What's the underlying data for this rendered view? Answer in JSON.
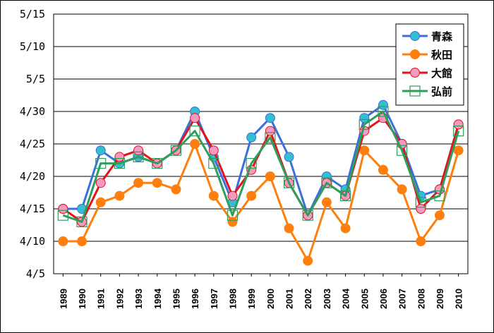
{
  "chart_data": {
    "type": "line",
    "title": "",
    "xlabel": "",
    "ylabel": "",
    "x": [
      "1989",
      "1990",
      "1991",
      "1992",
      "1993",
      "1994",
      "1995",
      "1996",
      "1997",
      "1998",
      "1999",
      "2000",
      "2001",
      "2002",
      "2003",
      "2004",
      "2005",
      "2006",
      "2007",
      "2008",
      "2009",
      "2010"
    ],
    "y_axis": {
      "min": "4/5",
      "max": "5/15",
      "ticks": [
        "4/5",
        "4/10",
        "4/15",
        "4/20",
        "4/25",
        "4/30",
        "5/5",
        "5/10",
        "5/15"
      ],
      "grid": true
    },
    "legend_position": "top-right",
    "series": [
      {
        "name": "青森",
        "color": "#3b6fe0",
        "marker": "circle",
        "marker_fill": "#33bfcf",
        "values": [
          "4/15",
          "4/15",
          "4/24",
          "4/22",
          "4/23",
          "4/22",
          "4/24",
          "4/30",
          "4/23",
          "4/16",
          "4/26",
          "4/29",
          "4/23",
          "4/14",
          "4/20",
          "4/18",
          "4/29",
          "5/1",
          "4/25",
          "4/17",
          "4/18",
          "4/28"
        ]
      },
      {
        "name": "秋田",
        "color": "#ff7f0e",
        "marker": "circle",
        "marker_fill": "#ff7f0e",
        "values": [
          "4/10",
          "4/10",
          "4/16",
          "4/17",
          "4/19",
          "4/19",
          "4/18",
          "4/25",
          "4/17",
          "4/13",
          "4/17",
          "4/20",
          "4/12",
          "4/7",
          "4/16",
          "4/12",
          "4/24",
          "4/21",
          "4/18",
          "4/10",
          "4/14",
          "4/24"
        ]
      },
      {
        "name": "大館",
        "color": "#e3121b",
        "marker": "circle",
        "marker_fill": "#f59ac0",
        "values": [
          "4/15",
          "4/13",
          "4/19",
          "4/23",
          "4/24",
          "4/22",
          "4/24",
          "4/29",
          "4/24",
          "4/17",
          "4/21",
          "4/27",
          "4/19",
          "4/14",
          "4/19",
          "4/17",
          "4/27",
          "4/29",
          "4/25",
          "4/15",
          "4/18",
          "4/28"
        ]
      },
      {
        "name": "弘前",
        "color": "#2e9e5b",
        "marker": "square",
        "marker_fill": "#ffffff",
        "values": [
          "4/14",
          "4/13",
          "4/22",
          "4/22",
          "4/23",
          "4/22",
          "4/24",
          "4/27",
          "4/22",
          "4/14",
          "4/22",
          "4/26",
          "4/19",
          "4/14",
          "4/19",
          "4/17",
          "4/28",
          "4/30",
          "4/24",
          "4/16",
          "4/17",
          "4/27"
        ]
      }
    ]
  }
}
